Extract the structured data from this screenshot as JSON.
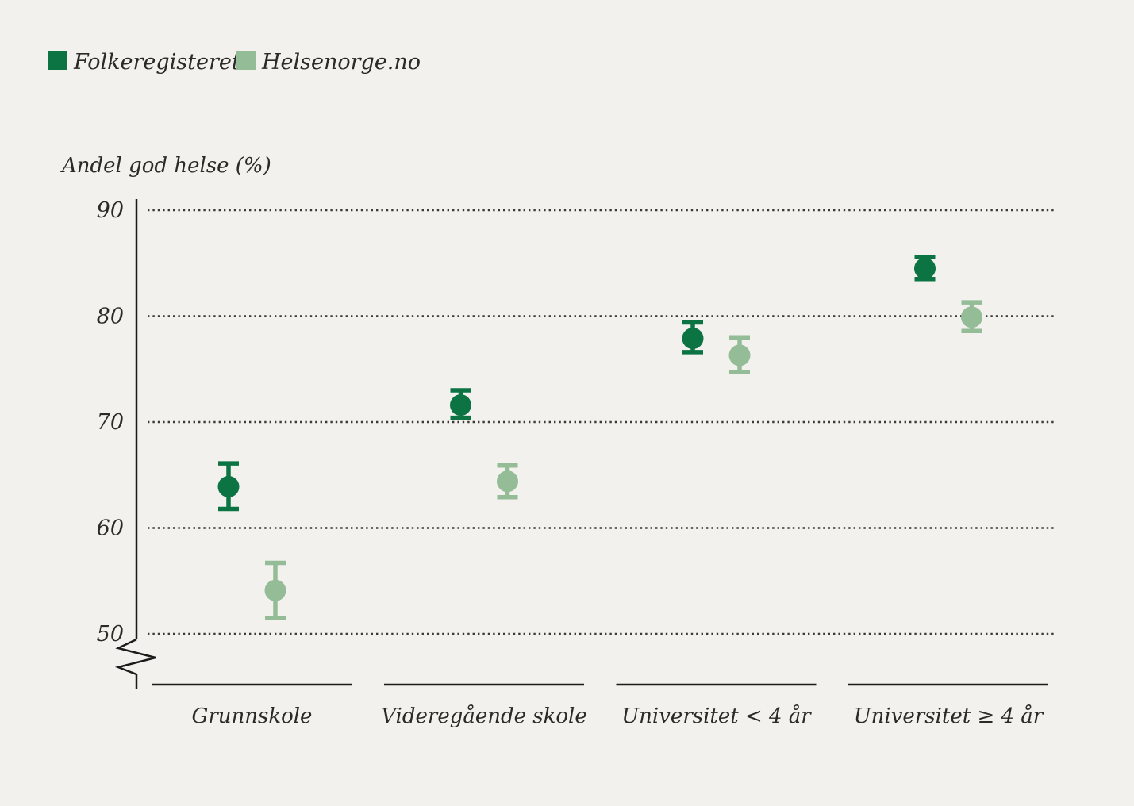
{
  "figure": {
    "background_color": "#f2f1ee",
    "text_color": "#2b2a27"
  },
  "chart_data": {
    "type": "scatter",
    "subtype": "dot-plot-with-error-bars",
    "title": "",
    "ylabel": "Andel god helse (%)",
    "xlabel": "",
    "categories": [
      "Grunnskole",
      "Videregående skole",
      "Universitet < 4 år",
      "Universitet ≥ 4 år"
    ],
    "y_ticks": [
      90,
      80,
      70,
      60,
      50
    ],
    "ylim": [
      50,
      90
    ],
    "axis_break_below": 50,
    "grid": "horizontal-dotted",
    "legend_position": "top-left",
    "series": [
      {
        "name": "Folkeregisteret",
        "color": "#0c7443",
        "values": [
          63.9,
          71.6,
          77.9,
          84.5
        ],
        "ci_low": [
          61.8,
          70.4,
          76.6,
          83.5
        ],
        "ci_high": [
          66.1,
          73.0,
          79.4,
          85.6
        ]
      },
      {
        "name": "Helsenorge.no",
        "color": "#93bc97",
        "values": [
          54.1,
          64.4,
          76.3,
          79.9
        ],
        "ci_low": [
          51.5,
          62.9,
          74.7,
          78.6
        ],
        "ci_high": [
          56.7,
          65.9,
          78.0,
          81.3
        ]
      }
    ]
  }
}
